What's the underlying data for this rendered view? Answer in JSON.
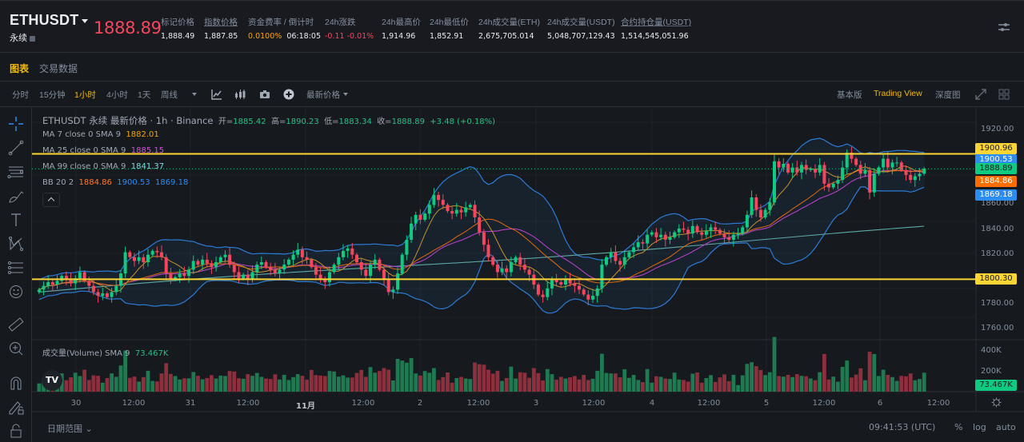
{
  "header": {
    "symbol": "ETHUSDT",
    "contract_type": "永续",
    "last_price": "1888.89",
    "stats": [
      {
        "label": "标记价格",
        "value": "1,888.49",
        "underline": false,
        "color": "#eaecef"
      },
      {
        "label": "指数价格",
        "value": "1,887.85",
        "underline": true,
        "color": "#eaecef"
      },
      {
        "label": "资金费率 / 倒计时",
        "value": "0.0100%",
        "value2": "06:18:05",
        "underline": false,
        "color": "#f7a600"
      },
      {
        "label": "24h涨跌",
        "value": "-0.11 -0.01%",
        "underline": false,
        "color": "#f6465d"
      },
      {
        "label": "24h最高价",
        "value": "1,914.96",
        "underline": false,
        "color": "#eaecef"
      },
      {
        "label": "24h最低价",
        "value": "1,852.91",
        "underline": false,
        "color": "#eaecef"
      },
      {
        "label": "24h成交量(ETH)",
        "value": "2,675,705.014",
        "underline": false,
        "color": "#eaecef"
      },
      {
        "label": "24h成交量(USDT)",
        "value": "5,048,707,129.43",
        "underline": false,
        "color": "#eaecef"
      },
      {
        "label": "合约持仓量(USDT)",
        "value": "1,514,545,051.96",
        "underline": true,
        "color": "#eaecef"
      }
    ]
  },
  "tabs": [
    {
      "label": "图表",
      "active": true
    },
    {
      "label": "交易数据",
      "active": false
    }
  ],
  "toolbar": {
    "intervals": [
      {
        "label": "分时",
        "active": false
      },
      {
        "label": "15分钟",
        "active": false
      },
      {
        "label": "1小时",
        "active": true
      },
      {
        "label": "4小时",
        "active": false
      },
      {
        "label": "1天",
        "active": false
      },
      {
        "label": "周线",
        "active": false
      }
    ],
    "price_type": "最新价格",
    "views": [
      {
        "label": "基本版",
        "active": false
      },
      {
        "label": "Trading View",
        "active": true
      },
      {
        "label": "深度图",
        "active": false
      }
    ]
  },
  "left_tools": [
    "crosshair-icon",
    "trend-line-icon",
    "horizontal-lines-icon",
    "brush-icon",
    "text-icon",
    "pattern-icon",
    "fib-icon",
    "emoji-icon",
    "ruler-icon",
    "zoom-in-icon",
    "magnet-icon",
    "lock-drawing-icon",
    "lock-icon"
  ],
  "legend": {
    "title": "ETHUSDT 永续 最新价格 · 1h · Binance",
    "ohlc": {
      "open_label": "开=",
      "open": "1885.42",
      "high_label": "高=",
      "high": "1890.23",
      "low_label": "低=",
      "low": "1883.34",
      "close_label": "收=",
      "close": "1888.89",
      "change": "+3.48 (+0.18%)"
    },
    "ma7": {
      "label": "MA 7 close 0 SMA 9",
      "value": "1882.01"
    },
    "ma25": {
      "label": "MA 25 close 0 SMA 9",
      "value": "1885.15"
    },
    "ma99": {
      "label": "MA 99 close 0 SMA 9",
      "value": "1841.37"
    },
    "bb": {
      "label": "BB 20 2",
      "basis": "1884.86",
      "upper": "1900.53",
      "lower": "1869.18"
    },
    "volume": {
      "label": "成交量(Volume) SMA 9",
      "value": "73.467K"
    }
  },
  "price_axis": [
    "1920.00",
    "1860.00",
    "1840.00",
    "1820.00",
    "1780.00",
    "1760.00"
  ],
  "price_tags": [
    {
      "value": "1900.96",
      "bg": "#fcd535",
      "fg": "#181a20"
    },
    {
      "value": "1900.53",
      "bg": "#2d8cf0",
      "fg": "#ffffff"
    },
    {
      "value": "1888.89",
      "bg": "#0ecb81",
      "fg": "#181a20"
    },
    {
      "value": "1884.86",
      "bg": "#ff6d00",
      "fg": "#ffffff"
    },
    {
      "value": "1869.18",
      "bg": "#2d8cf0",
      "fg": "#ffffff"
    },
    {
      "value": "1800.30",
      "bg": "#fcd535",
      "fg": "#181a20"
    }
  ],
  "volume_axis": [
    "400K",
    "200K"
  ],
  "volume_tag": "73.467K",
  "time_axis": [
    "30",
    "12:00",
    "31",
    "12:00",
    "11月",
    "12:00",
    "2",
    "12:00",
    "3",
    "12:00",
    "4",
    "12:00",
    "5",
    "12:00",
    "6",
    "12:00"
  ],
  "footer": {
    "date_range": "日期范围",
    "clock": "09:41:53 (UTC)",
    "percent": "%",
    "log": "log",
    "auto": "auto"
  },
  "colors": {
    "up": "#0ecb81",
    "down": "#f6465d",
    "accent": "#f0b90b",
    "hline": "#fcd535"
  },
  "chart_data": {
    "type": "candlestick",
    "title": "ETHUSDT 永续 1h",
    "ylim": [
      1755,
      1925
    ],
    "horizontal_lines": [
      1900.96,
      1800.3
    ],
    "closes": [
      1792,
      1795,
      1798,
      1796,
      1799,
      1803,
      1800,
      1797,
      1801,
      1806,
      1799,
      1795,
      1790,
      1787,
      1789,
      1786,
      1790,
      1795,
      1805,
      1822,
      1818,
      1815,
      1818,
      1814,
      1820,
      1823,
      1822,
      1818,
      1805,
      1800,
      1802,
      1805,
      1803,
      1808,
      1815,
      1812,
      1816,
      1813,
      1810,
      1814,
      1818,
      1820,
      1812,
      1806,
      1801,
      1804,
      1800,
      1806,
      1812,
      1814,
      1810,
      1808,
      1805,
      1808,
      1812,
      1816,
      1820,
      1824,
      1818,
      1816,
      1810,
      1804,
      1800,
      1798,
      1806,
      1812,
      1818,
      1823,
      1825,
      1820,
      1814,
      1808,
      1803,
      1812,
      1816,
      1808,
      1800,
      1790,
      1792,
      1805,
      1820,
      1832,
      1845,
      1852,
      1848,
      1853,
      1860,
      1868,
      1864,
      1860,
      1855,
      1853,
      1856,
      1854,
      1858,
      1860,
      1850,
      1838,
      1828,
      1818,
      1812,
      1806,
      1809,
      1806,
      1814,
      1818,
      1812,
      1808,
      1804,
      1796,
      1788,
      1786,
      1793,
      1800,
      1798,
      1796,
      1800,
      1797,
      1795,
      1792,
      1788,
      1784,
      1787,
      1793,
      1812,
      1818,
      1822,
      1815,
      1812,
      1818,
      1822,
      1826,
      1830,
      1829,
      1836,
      1838,
      1834,
      1836,
      1832,
      1834,
      1838,
      1841,
      1840,
      1837,
      1843,
      1838,
      1836,
      1839,
      1842,
      1840,
      1837,
      1834,
      1832,
      1836,
      1837,
      1842,
      1852,
      1866,
      1856,
      1850,
      1856,
      1862,
      1895,
      1890,
      1893,
      1886,
      1890,
      1886,
      1892,
      1888,
      1889,
      1886,
      1892,
      1877,
      1874,
      1877,
      1880,
      1890,
      1902,
      1897,
      1892,
      1885,
      1888,
      1870,
      1885,
      1890,
      1897,
      1890,
      1894,
      1894,
      1888,
      1884,
      1880,
      1883,
      1885,
      1889
    ],
    "volume_ylim": [
      0,
      450000
    ]
  }
}
